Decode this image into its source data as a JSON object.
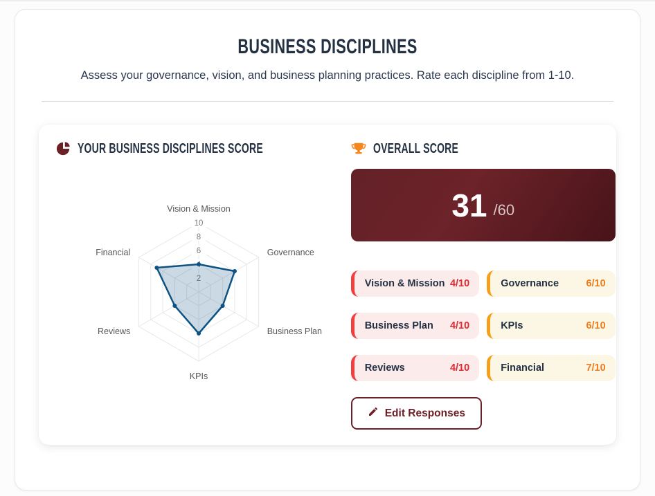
{
  "page": {
    "title": "BUSINESS DISCIPLINES",
    "subtitle": "Assess your governance, vision, and business planning practices. Rate each discipline from 1-10."
  },
  "sections": {
    "chart": {
      "icon": "pie-chart-icon",
      "title": "YOUR BUSINESS DISCIPLINES SCORE"
    },
    "overall": {
      "icon": "trophy-icon",
      "title": "OVERALL SCORE"
    }
  },
  "overall_score": {
    "value": "31",
    "suffix": "/60"
  },
  "score_chips": [
    {
      "label": "Vision & Mission",
      "value": "4/10",
      "tone": "red"
    },
    {
      "label": "Governance",
      "value": "6/10",
      "tone": "orange"
    },
    {
      "label": "Business Plan",
      "value": "4/10",
      "tone": "red"
    },
    {
      "label": "KPIs",
      "value": "6/10",
      "tone": "orange"
    },
    {
      "label": "Reviews",
      "value": "4/10",
      "tone": "red"
    },
    {
      "label": "Financial",
      "value": "7/10",
      "tone": "orange"
    }
  ],
  "edit_button": {
    "icon": "pencil-icon",
    "label": "Edit Responses"
  },
  "chart_data": {
    "type": "radar",
    "categories": [
      "Vision & Mission",
      "Governance",
      "Business Plan",
      "KPIs",
      "Reviews",
      "Financial"
    ],
    "values": [
      4,
      6,
      4,
      6,
      4,
      7
    ],
    "axis_range": [
      0,
      10
    ],
    "ticks": [
      2,
      4,
      6,
      8,
      10
    ],
    "grid": "hexagonal-web",
    "legend": "none",
    "line_color": "#0d5282",
    "fill_color": "rgba(13,82,130,0.22)",
    "grid_color": "#e7e7e7",
    "tick_color": "#7a7a7a",
    "label_color": "#565656"
  },
  "colors": {
    "maroon": "#6b2026",
    "score_box_gradient": [
      "#632127",
      "#6c2329",
      "#471319"
    ],
    "red_accent": "#ef4040",
    "red_text": "#e02a2e",
    "orange_accent": "#f59f1d",
    "orange_text": "#ee7b1b",
    "trophy_orange": "#f6871f",
    "heading_navy": "#243143",
    "chart_line": "#0d5282"
  }
}
